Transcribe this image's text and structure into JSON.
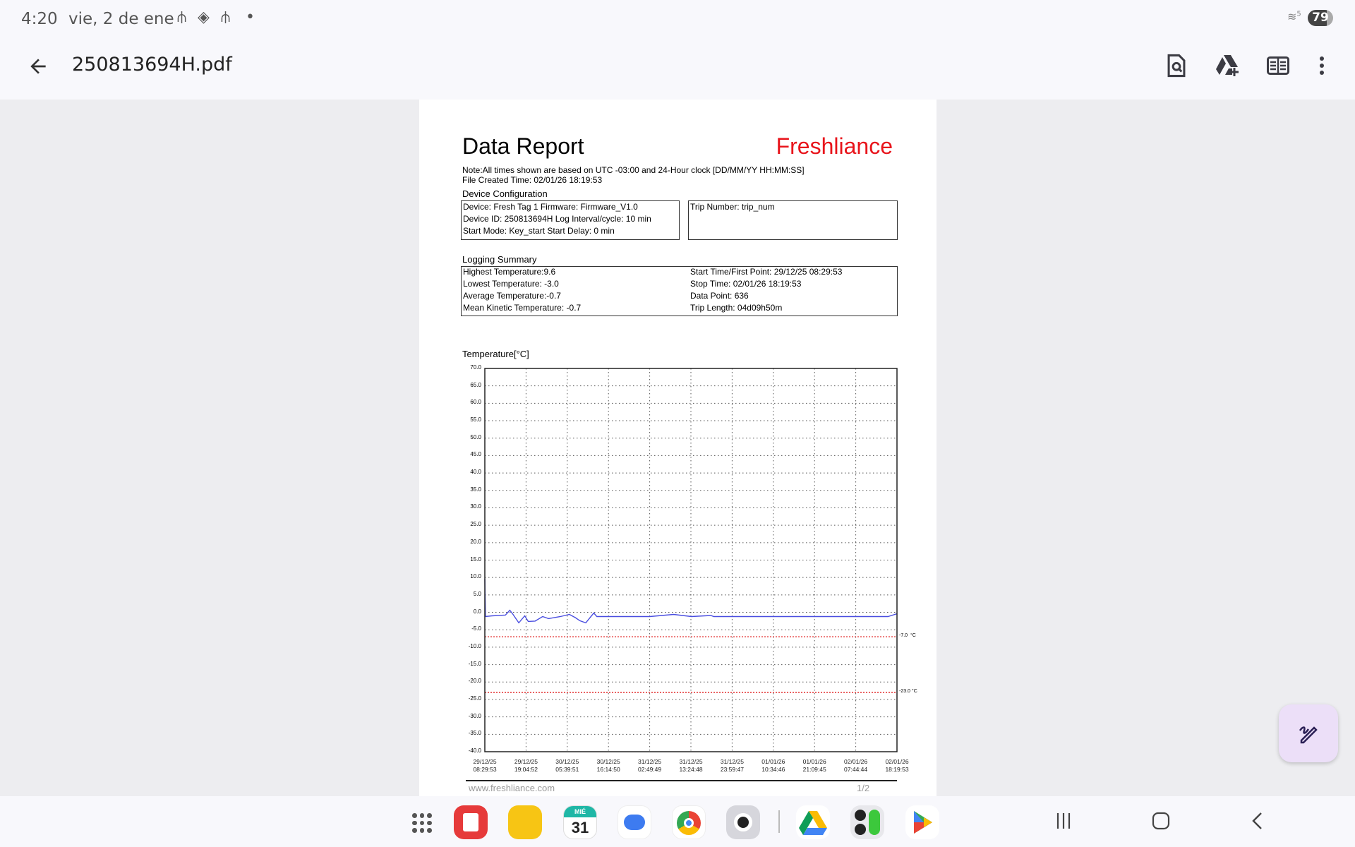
{
  "status_bar": {
    "time": "4:20",
    "date": "vie, 2 de ene",
    "battery": "79",
    "signal_label": "5",
    "icons": [
      "usb-icon",
      "vpn-diamond-icon",
      "usb-icon",
      "dot-icon",
      "wifi-icon",
      "battery-icon"
    ]
  },
  "app_bar": {
    "title": "250813694H.pdf",
    "actions": [
      "search-document-icon",
      "drive-add-icon",
      "reader-mode-icon",
      "more-vert-icon"
    ]
  },
  "report": {
    "title": "Data Report",
    "brand": "Freshliance",
    "brand_color": "#e8141b",
    "note": "Note:All times shown are based on UTC -03:00   and 24-Hour clock   [DD/MM/YY HH:MM:SS]",
    "file_created": "File Created Time: 02/01/26 18:19:53",
    "device_config": {
      "heading": "Device Configuration",
      "lines": [
        "Device:   Fresh Tag 1      Firmware: Firmware_V1.0",
        "Device ID: 250813694H Log Interval/cycle: 10 min",
        "Start Mode: Key_start     Start Delay:  0 min"
      ],
      "trip": "Trip Number: trip_num"
    },
    "logging_summary": {
      "heading": "Logging Summary",
      "left": [
        "Highest Temperature:9.6",
        "Lowest Temperature: -3.0",
        "Average Temperature:-0.7",
        "Mean Kinetic Temperature: -0.7"
      ],
      "right": [
        "Start Time/First Point: 29/12/25 08:29:53",
        "Stop Time: 02/01/26 18:19:53",
        "Data Point: 636",
        "Trip Length:  04d09h50m"
      ]
    },
    "footer": {
      "website": "www.freshliance.com",
      "page": "1/2"
    }
  },
  "chart_data": {
    "type": "line",
    "ylabel": "Temperature[°C]",
    "ylim": [
      -40,
      70
    ],
    "ystep": 5,
    "grid": true,
    "yticks": [
      "70.0",
      "65.0",
      "60.0",
      "55.0",
      "50.0",
      "45.0",
      "40.0",
      "35.0",
      "30.0",
      "25.0",
      "20.0",
      "15.0",
      "10.0",
      "5.0",
      "0.0",
      "-5.0",
      "-10.0",
      "-15.0",
      "-20.0",
      "-25.0",
      "-30.0",
      "-35.0",
      "-40.0"
    ],
    "xticks": [
      [
        "29/12/25",
        "08:29:53"
      ],
      [
        "29/12/25",
        "19:04:52"
      ],
      [
        "30/12/25",
        "05:39:51"
      ],
      [
        "30/12/25",
        "16:14:50"
      ],
      [
        "31/12/25",
        "02:49:49"
      ],
      [
        "31/12/25",
        "13:24:48"
      ],
      [
        "31/12/25",
        "23:59:47"
      ],
      [
        "01/01/26",
        "10:34:46"
      ],
      [
        "01/01/26",
        "21:09:45"
      ],
      [
        "02/01/26",
        "07:44:44"
      ],
      [
        "02/01/26",
        "18:19:53"
      ]
    ],
    "xlim": [
      "29/12/25 08:29:53",
      "02/01/26 18:19:53"
    ],
    "limits": [
      {
        "value": -7.0,
        "label": "-7.0  °C",
        "color": "#e02020"
      },
      {
        "value": -23.0,
        "label": "-23.0 °C",
        "color": "#e02020"
      }
    ],
    "series": [
      {
        "color": "#4a4ee0",
        "points": [
          [
            "29/12/25 08:29:53",
            9.6
          ],
          [
            "29/12/25 08:39:53",
            -1.2
          ],
          [
            "29/12/25 10:20:00",
            -1.0
          ],
          [
            "29/12/25 13:46:00",
            -0.8
          ],
          [
            "29/12/25 14:55:00",
            0.6
          ],
          [
            "29/12/25 15:41:00",
            -0.5
          ],
          [
            "29/12/25 17:13:00",
            -3.0
          ],
          [
            "29/12/25 18:44:00",
            -1.0
          ],
          [
            "29/12/25 19:39:00",
            -2.6
          ],
          [
            "29/12/25 21:25:00",
            -2.5
          ],
          [
            "29/12/25 23:20:00",
            -1.2
          ],
          [
            "30/12/25 00:52:00",
            -1.8
          ],
          [
            "30/12/25 03:55:00",
            -1.2
          ],
          [
            "30/12/25 06:13:00",
            -0.6
          ],
          [
            "30/12/25 07:44:00",
            -1.5
          ],
          [
            "30/12/25 08:53:00",
            -2.4
          ],
          [
            "30/12/25 10:25:00",
            -3.0
          ],
          [
            "30/12/25 12:29:00",
            -0.2
          ],
          [
            "30/12/25 13:15:00",
            -1.2
          ],
          [
            "31/12/25 02:52:00",
            -1.2
          ],
          [
            "31/12/25 08:58:00",
            -0.6
          ],
          [
            "31/12/25 13:34:00",
            -1.2
          ],
          [
            "31/12/25 18:32:00",
            -0.9
          ],
          [
            "31/12/25 19:18:00",
            -1.2
          ],
          [
            "02/01/26 16:02:00",
            -1.2
          ],
          [
            "02/01/26 18:19:53",
            -0.4
          ]
        ]
      }
    ]
  },
  "dock": {
    "calendar_day": "31",
    "calendar_weekday": "MIÉ",
    "apps": [
      "apps-grid-icon",
      "notes-app-icon",
      "files-app-icon",
      "calendar-app-icon",
      "messages-app-icon",
      "chrome-app-icon",
      "camera-app-icon",
      "drive-app-icon",
      "calculator-app-icon",
      "play-store-app-icon"
    ]
  },
  "nav": [
    "recents-icon",
    "home-icon",
    "back-icon"
  ]
}
